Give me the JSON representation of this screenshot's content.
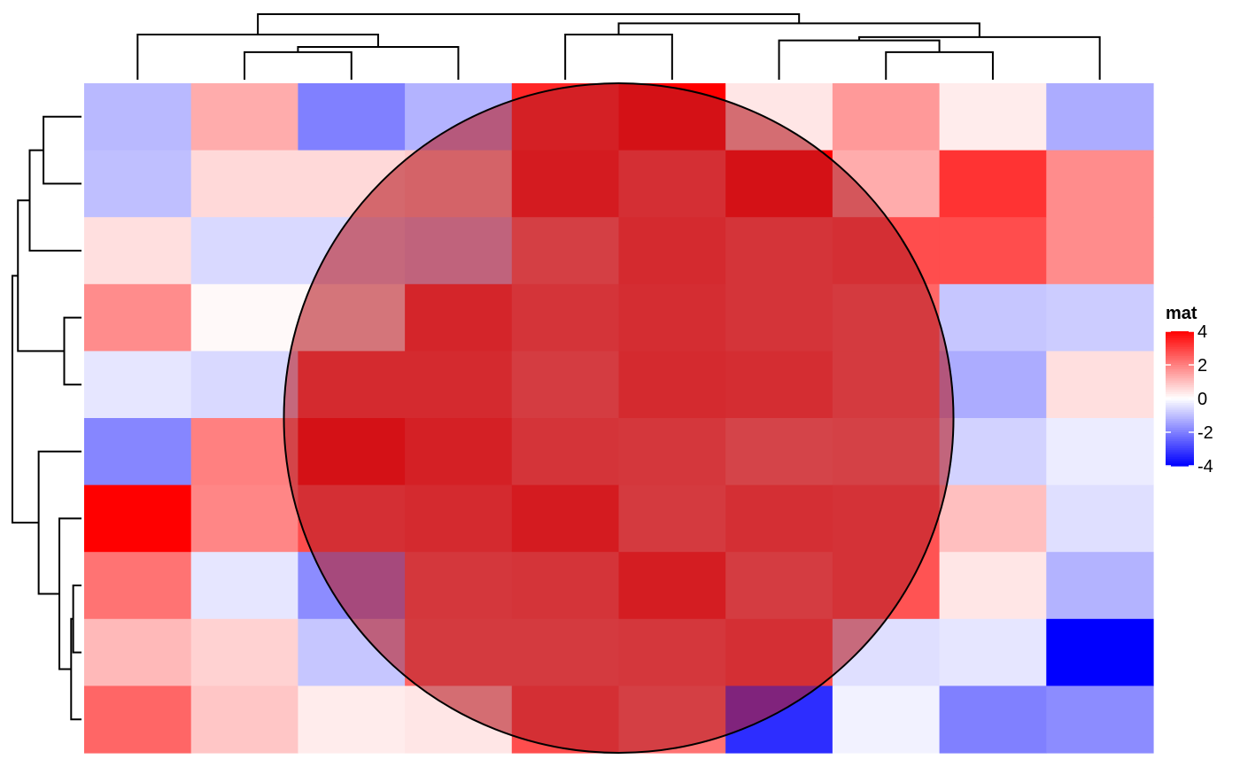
{
  "chart_data": {
    "type": "heatmap",
    "rows": 10,
    "cols": 10,
    "values": [
      [
        -1.1,
        1.3,
        -2.0,
        -1.2,
        3.4,
        4.6,
        0.4,
        1.6,
        0.3,
        -1.3
      ],
      [
        -1.0,
        0.6,
        0.6,
        0.8,
        3.6,
        2.8,
        4.0,
        1.3,
        3.2,
        1.8
      ],
      [
        0.5,
        -0.6,
        -0.6,
        -0.8,
        2.2,
        3.0,
        2.6,
        2.8,
        2.8,
        1.8
      ],
      [
        1.8,
        0.1,
        0.1,
        3.2,
        2.6,
        2.9,
        2.6,
        2.4,
        -0.9,
        -0.8
      ],
      [
        -0.4,
        -0.6,
        3.0,
        3.0,
        2.3,
        3.0,
        2.9,
        2.4,
        -1.3,
        0.5
      ],
      [
        -1.9,
        2.0,
        4.1,
        3.4,
        2.6,
        2.5,
        2.0,
        2.1,
        -0.7,
        -0.3
      ],
      [
        4.6,
        1.9,
        2.8,
        3.0,
        3.6,
        2.4,
        2.8,
        2.7,
        1.0,
        -0.5
      ],
      [
        2.2,
        -0.4,
        -1.8,
        2.5,
        2.6,
        3.5,
        2.3,
        2.7,
        0.4,
        -1.2
      ],
      [
        1.1,
        0.7,
        -0.9,
        2.4,
        2.4,
        2.5,
        2.8,
        -0.5,
        -0.4,
        -4.5
      ],
      [
        2.4,
        0.9,
        0.3,
        0.4,
        2.8,
        2.2,
        -3.3,
        -0.2,
        -2.0,
        -1.8
      ]
    ],
    "color_scale": {
      "min": -4,
      "mid": 0,
      "max": 4,
      "low_color": "#0000FF",
      "mid_color": "#FFFFFF",
      "high_color": "#FF0000"
    },
    "legend": {
      "title": "mat",
      "ticks": [
        4,
        2,
        0,
        -2,
        -4
      ],
      "placement": "right"
    },
    "overlay": {
      "shape": "circle",
      "fill": "#b81c24",
      "fill_opacity": 0.6,
      "stroke": "#000000"
    },
    "row_dendrogram": [
      [
        0,
        1,
        0.55
      ],
      [
        3,
        4,
        0.25
      ],
      [
        10,
        2,
        0.75
      ],
      [
        11,
        12,
        0.92
      ],
      [
        7,
        8,
        0.12
      ],
      [
        14,
        9,
        0.15
      ],
      [
        6,
        15,
        0.32
      ],
      [
        5,
        16,
        0.62
      ],
      [
        13,
        17,
        1.0
      ]
    ],
    "col_dendrogram": [
      [
        1,
        2,
        0.42
      ],
      [
        3,
        10,
        0.5
      ],
      [
        0,
        11,
        0.69
      ],
      [
        7,
        8,
        0.42
      ],
      [
        6,
        13,
        0.6
      ],
      [
        9,
        14,
        0.65
      ],
      [
        4,
        5,
        0.69
      ],
      [
        15,
        16,
        0.86
      ],
      [
        12,
        17,
        1.0
      ]
    ]
  }
}
